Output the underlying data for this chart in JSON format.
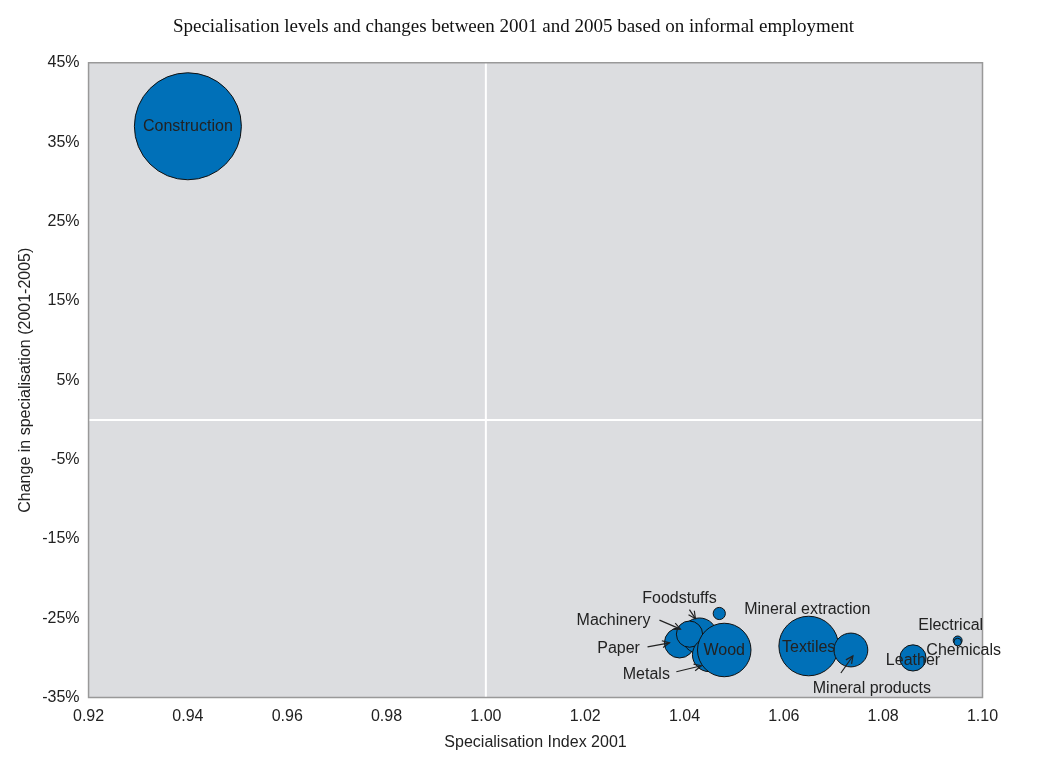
{
  "chart_data": {
    "type": "bubble",
    "title": "Specialisation levels and changes between 2001 and 2005 based on informal employment",
    "xlabel": "Specialisation Index 2001",
    "ylabel": "Change in specialisation (2001-2005)",
    "x": [
      0.94,
      1.039,
      1.043,
      1.041,
      1.045,
      1.048,
      1.047,
      1.065,
      1.0735,
      1.086,
      1.095,
      1.095
    ],
    "values": [
      37,
      -28.1,
      -27.2,
      -27,
      -29.6,
      -29,
      -24.4,
      -28.5,
      -29,
      -30,
      -27.8,
      -28
    ],
    "sizes": [
      1,
      0.08,
      0.11,
      0.06,
      0.1,
      0.25,
      0.013,
      0.31,
      0.1,
      0.06,
      0.007,
      0.005
    ],
    "color": "#0070b8",
    "annotations": [
      {
        "text": "Construction",
        "x": 0.94,
        "y": 37
      },
      {
        "text": "Paper",
        "x": 1.039,
        "y": -28.1
      },
      {
        "text": "Foodstuffs",
        "x": 1.043,
        "y": -27.2
      },
      {
        "text": "Machinery",
        "x": 1.041,
        "y": -27
      },
      {
        "text": "Metals",
        "x": 1.045,
        "y": -29.6
      },
      {
        "text": "Wood",
        "x": 1.048,
        "y": -29
      },
      {
        "text": "Mineral extraction",
        "x": 1.047,
        "y": -24.4
      },
      {
        "text": "Textiles",
        "x": 1.065,
        "y": -28.5
      },
      {
        "text": "Mineral products",
        "x": 1.0735,
        "y": -29
      },
      {
        "text": "Leather",
        "x": 1.086,
        "y": -30
      },
      {
        "text": "Electrical",
        "x": 1.095,
        "y": -27.8
      },
      {
        "text": "Chemicals",
        "x": 1.095,
        "y": -28
      }
    ],
    "xlim": [
      0.92,
      1.1
    ],
    "xticks": [
      {
        "value": 0.92,
        "label": "0.92"
      },
      {
        "value": 0.94,
        "label": "0.94"
      },
      {
        "value": 0.96,
        "label": "0.96"
      },
      {
        "value": 0.98,
        "label": "0.98"
      },
      {
        "value": 1,
        "label": "1.00"
      },
      {
        "value": 1.02,
        "label": "1.02"
      },
      {
        "value": 1.04,
        "label": "1.04"
      },
      {
        "value": 1.06,
        "label": "1.06"
      },
      {
        "value": 1.08,
        "label": "1.08"
      },
      {
        "value": 1.1,
        "label": "1.10"
      }
    ],
    "ylim": [
      -35,
      45
    ],
    "yticks": [
      {
        "value": -35,
        "label": "-35%"
      },
      {
        "value": -25,
        "label": "-25%"
      },
      {
        "value": -15,
        "label": "-15%"
      },
      {
        "value": -5,
        "label": "-5%"
      },
      {
        "value": 5,
        "label": "5%"
      },
      {
        "value": 15,
        "label": "15%"
      },
      {
        "value": 25,
        "label": "25%"
      },
      {
        "value": 35,
        "label": "35%"
      },
      {
        "value": 45,
        "label": "45%"
      }
    ],
    "ref_lines": [
      {
        "axis": "x",
        "value": 1,
        "color": "#ffffff"
      },
      {
        "axis": "y",
        "value": 0,
        "color": "#ffffff"
      }
    ],
    "grid": false,
    "legend": false
  }
}
